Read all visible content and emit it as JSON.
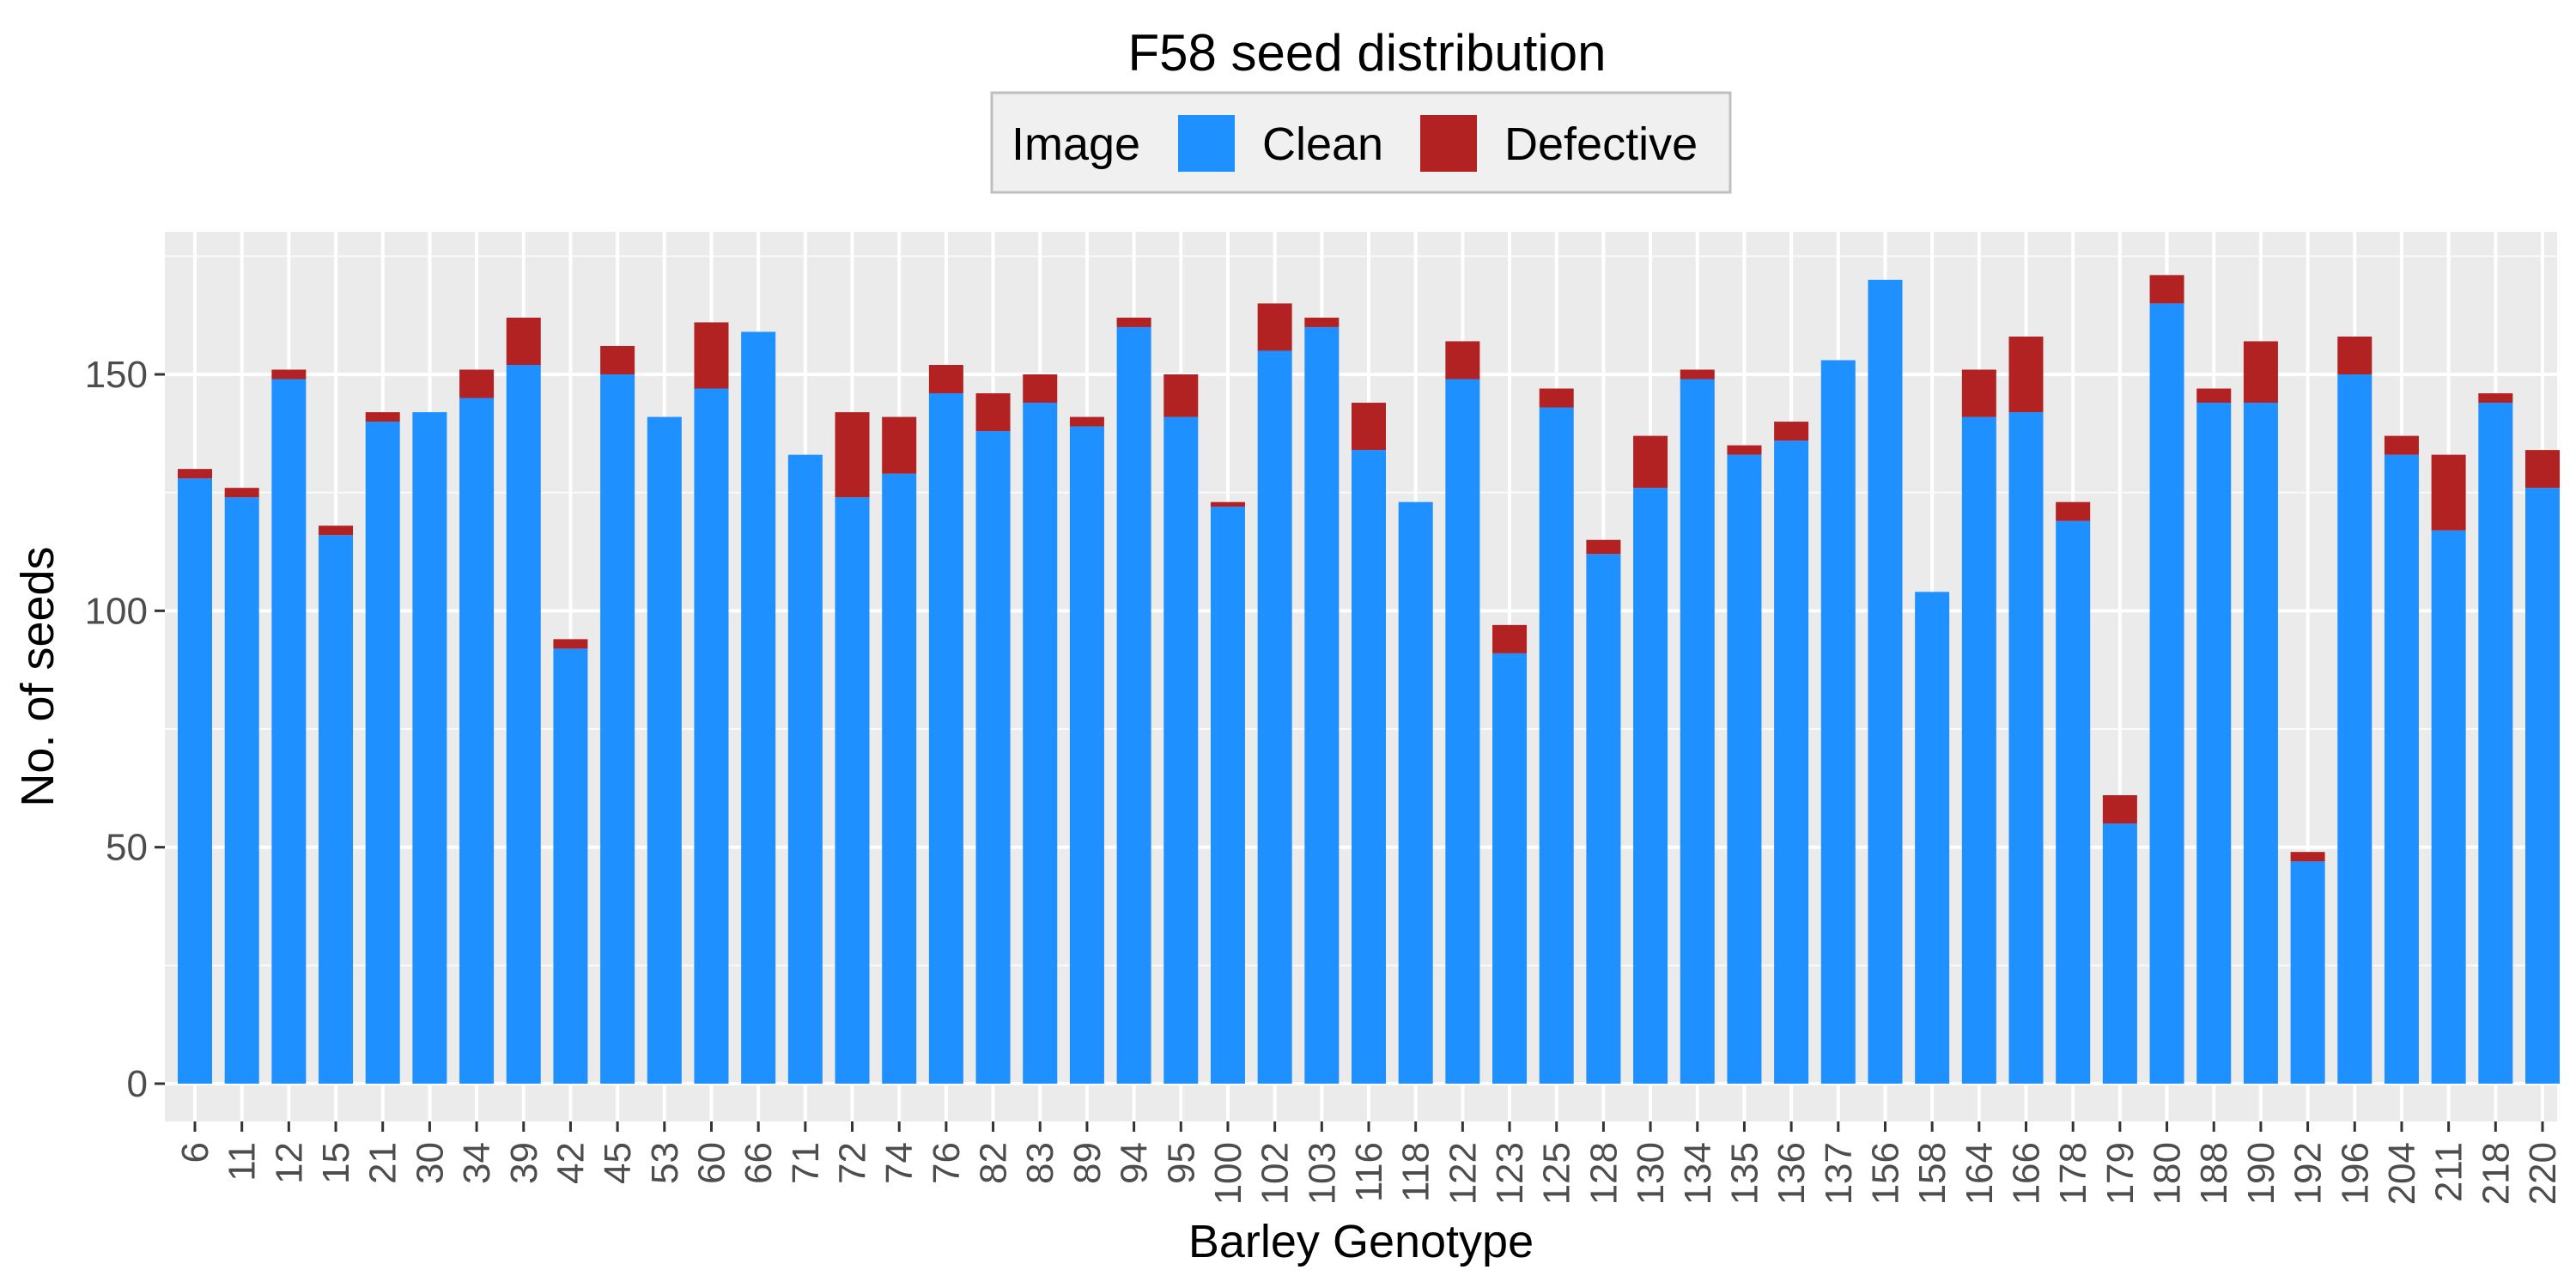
{
  "chart_data": {
    "type": "bar",
    "stacked": true,
    "title": "F58 seed distribution",
    "xlabel": "Barley Genotype",
    "ylabel": "No. of seeds",
    "ylim": [
      0,
      177
    ],
    "yticks": [
      0,
      50,
      100,
      150
    ],
    "grid": true,
    "legend": {
      "title": "Image",
      "position": "top"
    },
    "categories": [
      "6",
      "11",
      "12",
      "15",
      "21",
      "30",
      "34",
      "39",
      "42",
      "45",
      "53",
      "60",
      "66",
      "71",
      "72",
      "74",
      "76",
      "82",
      "83",
      "89",
      "94",
      "95",
      "100",
      "102",
      "103",
      "116",
      "118",
      "122",
      "123",
      "125",
      "128",
      "130",
      "134",
      "135",
      "136",
      "137",
      "156",
      "158",
      "164",
      "166",
      "178",
      "179",
      "180",
      "188",
      "190",
      "192",
      "196",
      "204",
      "211",
      "218",
      "220"
    ],
    "series": [
      {
        "name": "Clean",
        "color": "#1E90FF",
        "values": [
          128,
          124,
          149,
          116,
          140,
          142,
          145,
          152,
          92,
          150,
          141,
          147,
          159,
          133,
          124,
          129,
          146,
          138,
          144,
          139,
          160,
          141,
          122,
          155,
          160,
          134,
          123,
          149,
          91,
          143,
          112,
          126,
          149,
          133,
          136,
          153,
          170,
          104,
          141,
          142,
          119,
          55,
          165,
          144,
          144,
          47,
          150,
          133,
          117,
          144,
          126
        ]
      },
      {
        "name": "Defective",
        "color": "#B22222",
        "values": [
          2,
          2,
          2,
          2,
          2,
          0,
          6,
          10,
          2,
          6,
          0,
          14,
          0,
          0,
          18,
          12,
          6,
          8,
          6,
          2,
          2,
          9,
          1,
          10,
          2,
          10,
          0,
          8,
          6,
          4,
          3,
          11,
          2,
          2,
          4,
          0,
          0,
          0,
          10,
          16,
          4,
          6,
          6,
          3,
          13,
          2,
          8,
          4,
          16,
          2,
          8
        ]
      }
    ]
  }
}
